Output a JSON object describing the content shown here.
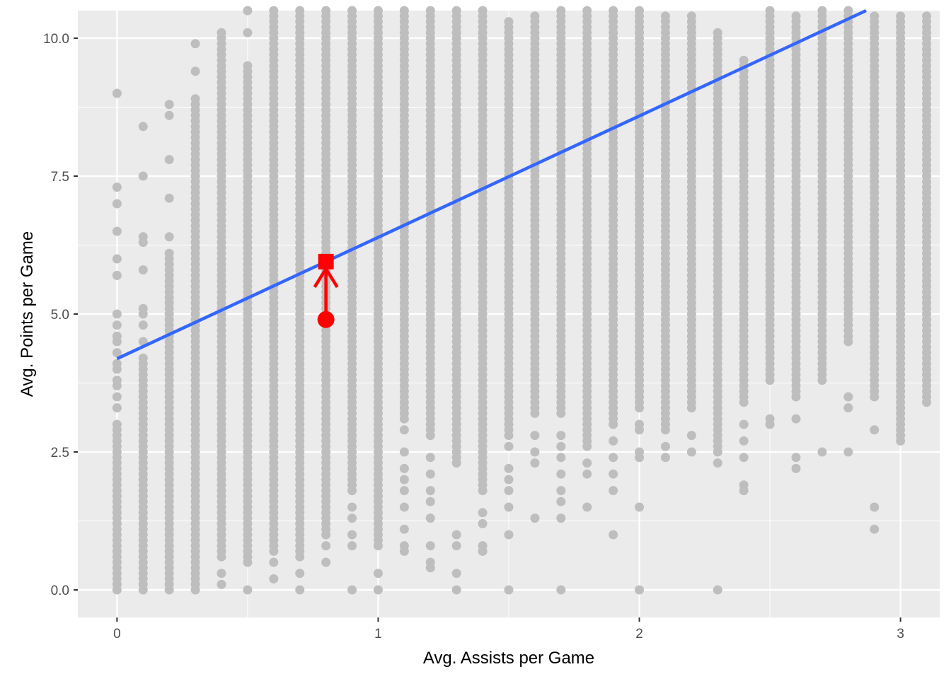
{
  "chart_data": {
    "type": "scatter",
    "title": "",
    "xlabel": "Avg. Assists per Game",
    "ylabel": "Avg. Points per Game",
    "xlim": [
      -0.15,
      3.15
    ],
    "ylim": [
      -0.5,
      10.5
    ],
    "x_ticks": [
      0,
      1,
      2,
      3
    ],
    "x_tick_labels": [
      "0",
      "1",
      "2",
      "3"
    ],
    "y_ticks": [
      0,
      2.5,
      5,
      7.5,
      10
    ],
    "y_tick_labels": [
      "0.0",
      "2.5",
      "5.0",
      "7.5",
      "10.0"
    ],
    "grid": true,
    "legend": "none",
    "colors": {
      "panel_background": "#ebebeb",
      "grid": "#ffffff",
      "points": "#bebebe",
      "fit_line": "#3366ff",
      "highlight": "#ff0000"
    },
    "columns": [
      {
        "x": 0.0,
        "y_min": 0.0,
        "y_max": 3.0,
        "outliers": [
          3.3,
          3.5,
          3.7,
          3.8,
          4.0,
          4.1,
          4.3,
          4.5,
          4.6,
          4.8,
          5.0,
          5.7,
          6.0,
          6.5,
          7.0,
          7.3,
          9.0
        ]
      },
      {
        "x": 0.1,
        "y_min": 0.1,
        "y_max": 4.2,
        "outliers": [
          0.0,
          4.5,
          4.8,
          5.0,
          5.1,
          5.8,
          6.3,
          6.4,
          7.5,
          8.4
        ]
      },
      {
        "x": 0.2,
        "y_min": 0.1,
        "y_max": 6.1,
        "outliers": [
          0.0,
          6.4,
          7.1,
          7.8,
          8.6,
          8.8
        ]
      },
      {
        "x": 0.3,
        "y_min": 0.1,
        "y_max": 8.9,
        "outliers": [
          0.0,
          9.4,
          9.9
        ]
      },
      {
        "x": 0.4,
        "y_min": 0.6,
        "y_max": 10.1,
        "outliers": [
          0.1,
          0.3
        ]
      },
      {
        "x": 0.5,
        "y_min": 0.5,
        "y_max": 9.5,
        "outliers": [
          0.0,
          10.1,
          10.5
        ]
      },
      {
        "x": 0.6,
        "y_min": 0.7,
        "y_max": 10.5,
        "outliers": [
          0.2,
          0.5
        ]
      },
      {
        "x": 0.7,
        "y_min": 0.6,
        "y_max": 10.5,
        "outliers": [
          0.0,
          0.3
        ]
      },
      {
        "x": 0.8,
        "y_min": 1.0,
        "y_max": 10.5,
        "outliers": [
          0.5,
          0.8
        ]
      },
      {
        "x": 0.9,
        "y_min": 1.8,
        "y_max": 10.5,
        "outliers": [
          0.0,
          0.8,
          1.0,
          1.3,
          1.5
        ]
      },
      {
        "x": 1.0,
        "y_min": 0.8,
        "y_max": 10.5,
        "outliers": [
          0.0,
          0.3
        ]
      },
      {
        "x": 1.1,
        "y_min": 3.1,
        "y_max": 10.5,
        "outliers": [
          0.7,
          0.8,
          1.1,
          1.5,
          1.8,
          2.0,
          2.2,
          2.5,
          2.9
        ]
      },
      {
        "x": 1.2,
        "y_min": 2.8,
        "y_max": 10.5,
        "outliers": [
          0.4,
          0.5,
          0.8,
          1.3,
          1.6,
          1.8,
          2.1,
          2.4
        ]
      },
      {
        "x": 1.3,
        "y_min": 2.3,
        "y_max": 10.5,
        "outliers": [
          0.0,
          0.3,
          0.8,
          1.0
        ]
      },
      {
        "x": 1.4,
        "y_min": 1.8,
        "y_max": 10.5,
        "outliers": [
          0.7,
          0.8,
          1.2,
          1.4
        ]
      },
      {
        "x": 1.5,
        "y_min": 2.8,
        "y_max": 10.3,
        "outliers": [
          0.0,
          1.0,
          1.5,
          1.8,
          2.0,
          2.2,
          2.6
        ]
      },
      {
        "x": 1.6,
        "y_min": 3.2,
        "y_max": 10.4,
        "outliers": [
          1.3,
          2.3,
          2.5,
          2.8
        ]
      },
      {
        "x": 1.7,
        "y_min": 3.2,
        "y_max": 10.5,
        "outliers": [
          0.0,
          1.3,
          1.6,
          1.8,
          2.1,
          2.4,
          2.6,
          2.8
        ]
      },
      {
        "x": 1.8,
        "y_min": 2.6,
        "y_max": 10.5,
        "outliers": [
          1.5,
          2.1,
          2.3
        ]
      },
      {
        "x": 1.9,
        "y_min": 3.0,
        "y_max": 10.5,
        "outliers": [
          1.0,
          1.8,
          2.1,
          2.4,
          2.7
        ]
      },
      {
        "x": 2.0,
        "y_min": 3.3,
        "y_max": 10.5,
        "outliers": [
          0.0,
          1.5,
          2.4,
          2.5,
          2.9,
          3.0,
          5.2,
          5.5,
          6.0,
          6.2,
          6.4
        ]
      },
      {
        "x": 2.1,
        "y_min": 2.9,
        "y_max": 10.4,
        "outliers": [
          2.4,
          2.6
        ]
      },
      {
        "x": 2.2,
        "y_min": 3.3,
        "y_max": 10.4,
        "outliers": [
          2.5,
          2.8
        ]
      },
      {
        "x": 2.3,
        "y_min": 2.5,
        "y_max": 10.1,
        "outliers": [
          0.0,
          2.3
        ]
      },
      {
        "x": 2.4,
        "y_min": 3.4,
        "y_max": 9.6,
        "outliers": [
          1.8,
          1.9,
          2.4,
          2.7,
          3.0
        ]
      },
      {
        "x": 2.5,
        "y_min": 3.8,
        "y_max": 10.5,
        "outliers": [
          3.0,
          3.1
        ]
      },
      {
        "x": 2.6,
        "y_min": 3.5,
        "y_max": 10.4,
        "outliers": [
          2.2,
          2.4,
          3.1
        ]
      },
      {
        "x": 2.7,
        "y_min": 3.8,
        "y_max": 10.5,
        "outliers": [
          2.5
        ]
      },
      {
        "x": 2.8,
        "y_min": 4.5,
        "y_max": 10.5,
        "outliers": [
          2.5,
          3.3,
          3.5
        ]
      },
      {
        "x": 2.9,
        "y_min": 3.5,
        "y_max": 10.4,
        "outliers": [
          1.1,
          1.5,
          2.9
        ]
      },
      {
        "x": 3.0,
        "y_min": 2.7,
        "y_max": 10.4,
        "outliers": []
      },
      {
        "x": 3.1,
        "y_min": 3.4,
        "y_max": 10.4,
        "outliers": []
      }
    ],
    "fit_line": {
      "intercept": 4.19,
      "slope": 2.2,
      "x_start": 0.0,
      "x_end": 3.1
    },
    "highlight": {
      "observed": {
        "x": 0.8,
        "y": 4.9
      },
      "predicted": {
        "x": 0.8,
        "y": 5.95
      }
    }
  }
}
